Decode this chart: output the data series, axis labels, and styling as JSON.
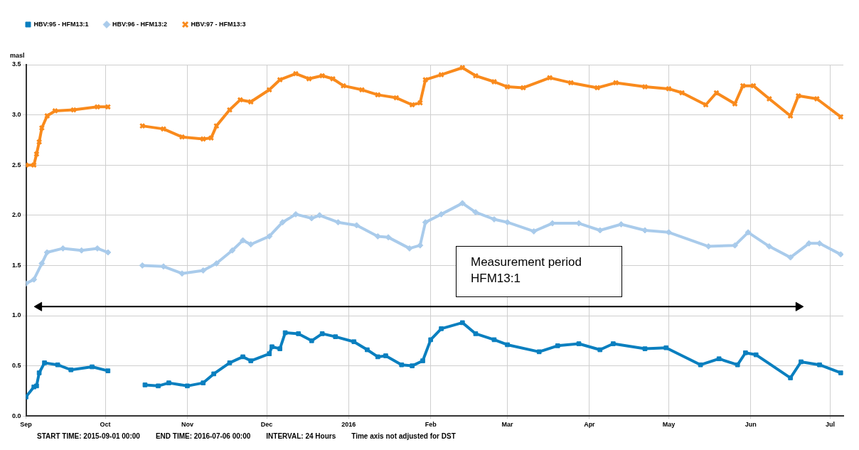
{
  "chart_data": {
    "type": "line",
    "ylabel": "masl",
    "legend": "top left",
    "grid": true,
    "xlim": [
      "2015-09-01",
      "2016-07-06"
    ],
    "xticks": [
      {
        "value": "2015-09-01",
        "label": "Sep"
      },
      {
        "value": "2015-10-01",
        "label": "Oct"
      },
      {
        "value": "2015-11-01",
        "label": "Nov"
      },
      {
        "value": "2015-12-01",
        "label": "Dec"
      },
      {
        "value": "2016-01-01",
        "label": "2016"
      },
      {
        "value": "2016-02-01",
        "label": "Feb"
      },
      {
        "value": "2016-03-01",
        "label": "Mar"
      },
      {
        "value": "2016-04-01",
        "label": "Apr"
      },
      {
        "value": "2016-05-01",
        "label": "May"
      },
      {
        "value": "2016-06-01",
        "label": "Jun"
      },
      {
        "value": "2016-07-01",
        "label": "Jul"
      }
    ],
    "ylim": [
      0,
      3.5
    ],
    "yticks": [
      {
        "value": 0,
        "label": "0.0"
      },
      0.5,
      {
        "value": 1,
        "label": "1.0"
      },
      1.5,
      {
        "value": 2,
        "label": "2.0"
      },
      2.5,
      {
        "value": 3,
        "label": "3.0"
      },
      3.5
    ],
    "series": [
      {
        "name": "HBV:95 - HFM13:1",
        "color": "#0a7fbf",
        "marker": "square",
        "x": [
          "2015-09-01",
          "2015-09-04",
          "2015-09-05",
          "2015-09-06",
          "2015-09-08",
          "2015-09-13",
          "2015-09-18",
          "2015-09-26",
          "2015-10-02",
          "2015-10-09",
          "2015-10-16",
          "2015-10-21",
          "2015-10-25",
          "2015-11-01",
          "2015-11-07",
          "2015-11-11",
          "2015-11-17",
          "2015-11-22",
          "2015-11-25",
          "2015-12-02",
          "2015-12-03",
          "2015-12-06",
          "2015-12-08",
          "2015-12-13",
          "2015-12-18",
          "2015-12-22",
          "2015-12-27",
          "2016-01-03",
          "2016-01-08",
          "2016-01-12",
          "2016-01-15",
          "2016-01-21",
          "2016-01-25",
          "2016-01-29",
          "2016-02-01",
          "2016-02-05",
          "2016-02-13",
          "2016-02-18",
          "2016-02-25",
          "2016-03-01",
          "2016-03-13",
          "2016-03-20",
          "2016-03-28",
          "2016-04-05",
          "2016-04-10",
          "2016-04-22",
          "2016-04-30",
          "2016-05-13",
          "2016-05-20",
          "2016-05-27",
          "2016-05-30",
          "2016-06-03",
          "2016-06-16",
          "2016-06-20",
          "2016-06-27",
          "2016-07-05"
        ],
        "values": [
          0.19,
          0.29,
          0.3,
          0.43,
          0.53,
          0.51,
          0.46,
          0.49,
          0.45,
          null,
          0.31,
          0.3,
          0.33,
          0.3,
          0.33,
          0.42,
          0.53,
          0.59,
          0.55,
          0.62,
          0.69,
          0.67,
          0.83,
          0.82,
          0.75,
          0.82,
          0.79,
          0.74,
          0.66,
          0.59,
          0.6,
          0.51,
          0.5,
          0.55,
          0.76,
          0.87,
          0.93,
          0.82,
          0.76,
          0.71,
          0.64,
          0.7,
          0.72,
          0.66,
          0.72,
          0.67,
          0.68,
          0.51,
          0.57,
          0.51,
          0.63,
          0.61,
          0.38,
          0.54,
          0.51,
          0.43
        ]
      },
      {
        "name": "HBV:96 - HFM13:2",
        "color": "#a9cbeb",
        "marker": "diamond",
        "x": [
          "2015-09-01",
          "2015-09-04",
          "2015-09-07",
          "2015-09-09",
          "2015-09-15",
          "2015-09-22",
          "2015-09-28",
          "2015-10-02",
          "2015-10-09",
          "2015-10-15",
          "2015-10-23",
          "2015-10-30",
          "2015-11-07",
          "2015-11-12",
          "2015-11-18",
          "2015-11-22",
          "2015-11-25",
          "2015-12-02",
          "2015-12-07",
          "2015-12-12",
          "2015-12-18",
          "2015-12-21",
          "2015-12-28",
          "2016-01-04",
          "2016-01-12",
          "2016-01-16",
          "2016-01-24",
          "2016-01-28",
          "2016-01-30",
          "2016-02-05",
          "2016-02-13",
          "2016-02-18",
          "2016-02-25",
          "2016-03-01",
          "2016-03-11",
          "2016-03-18",
          "2016-03-28",
          "2016-04-05",
          "2016-04-13",
          "2016-04-22",
          "2016-05-01",
          "2016-05-16",
          "2016-05-26",
          "2016-05-31",
          "2016-06-08",
          "2016-06-16",
          "2016-06-23",
          "2016-06-27",
          "2016-07-05"
        ],
        "values": [
          1.32,
          1.36,
          1.52,
          1.63,
          1.67,
          1.65,
          1.67,
          1.63,
          null,
          1.5,
          1.49,
          1.42,
          1.45,
          1.52,
          1.65,
          1.75,
          1.71,
          1.79,
          1.93,
          2.01,
          1.97,
          2.0,
          1.93,
          1.9,
          1.79,
          1.78,
          1.67,
          1.7,
          1.93,
          2.01,
          2.12,
          2.03,
          1.96,
          1.93,
          1.84,
          1.92,
          1.92,
          1.85,
          1.91,
          1.85,
          1.83,
          1.69,
          1.7,
          1.83,
          1.69,
          1.58,
          1.72,
          1.72,
          1.61
        ]
      },
      {
        "name": "HBV:97 - HFM13:3",
        "color": "#f98a1c",
        "marker": "cross",
        "x": [
          "2015-09-01",
          "2015-09-04",
          "2015-09-05",
          "2015-09-06",
          "2015-09-07",
          "2015-09-09",
          "2015-09-12",
          "2015-09-19",
          "2015-09-28",
          "2015-10-02",
          "2015-10-09",
          "2015-10-15",
          "2015-10-23",
          "2015-10-30",
          "2015-11-07",
          "2015-11-10",
          "2015-11-12",
          "2015-11-17",
          "2015-11-21",
          "2015-11-25",
          "2015-12-02",
          "2015-12-06",
          "2015-12-12",
          "2015-12-17",
          "2015-12-22",
          "2015-12-26",
          "2015-12-30",
          "2016-01-06",
          "2016-01-12",
          "2016-01-19",
          "2016-01-25",
          "2016-01-28",
          "2016-01-30",
          "2016-02-05",
          "2016-02-13",
          "2016-02-18",
          "2016-02-25",
          "2016-03-01",
          "2016-03-07",
          "2016-03-17",
          "2016-03-25",
          "2016-04-04",
          "2016-04-11",
          "2016-04-22",
          "2016-05-01",
          "2016-05-06",
          "2016-05-15",
          "2016-05-19",
          "2016-05-26",
          "2016-05-29",
          "2016-06-02",
          "2016-06-08",
          "2016-06-16",
          "2016-06-19",
          "2016-06-26",
          "2016-07-05"
        ],
        "values": [
          2.5,
          2.5,
          2.61,
          2.73,
          2.87,
          2.99,
          3.04,
          3.05,
          3.08,
          3.08,
          null,
          2.89,
          2.86,
          2.78,
          2.76,
          2.77,
          2.89,
          3.05,
          3.15,
          3.13,
          3.25,
          3.35,
          3.41,
          3.36,
          3.39,
          3.36,
          3.29,
          3.25,
          3.2,
          3.17,
          3.1,
          3.12,
          3.35,
          3.4,
          3.47,
          3.39,
          3.33,
          3.28,
          3.27,
          3.37,
          3.32,
          3.27,
          3.32,
          3.28,
          3.26,
          3.22,
          3.1,
          3.22,
          3.11,
          3.29,
          3.29,
          3.16,
          2.99,
          3.19,
          3.16,
          2.98
        ]
      },
      {
        "color": "#000000",
        "marker": "triangle",
        "x": [
          "2015-09-06",
          "2016-06-19"
        ],
        "values": [
          1.09,
          1.09
        ]
      }
    ],
    "annotations": [
      "Measurement period HFM13:1",
      "START TIME: 2015-09-01 00:00",
      "END TIME: 2016-07-06 00:00",
      "INTERVAL: 24 Hours",
      "Time axis not adjusted for DST"
    ]
  }
}
